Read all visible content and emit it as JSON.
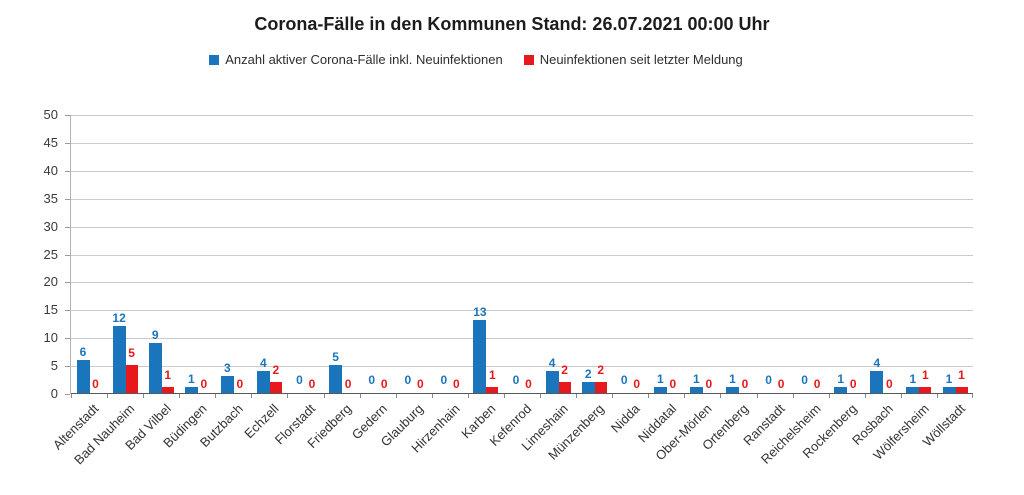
{
  "chart_data": {
    "type": "bar",
    "title": "Corona-Fälle in den Kommunen Stand: 26.07.2021 00:00 Uhr",
    "categories": [
      "Altenstadt",
      "Bad Nauheim",
      "Bad Vilbel",
      "Büdingen",
      "Butzbach",
      "Echzell",
      "Florstadt",
      "Friedberg",
      "Gedern",
      "Glauburg",
      "Hirzenhain",
      "Karben",
      "Kefenrod",
      "Limeshain",
      "Münzenberg",
      "Nidda",
      "Niddatal",
      "Ober-Mörlen",
      "Ortenberg",
      "Ranstadt",
      "Reichelsheim",
      "Rockenberg",
      "Rosbach",
      "Wölfersheim",
      "Wöllstadt"
    ],
    "series": [
      {
        "name": "Anzahl aktiver Corona-Fälle inkl. Neuinfektionen",
        "color": "#1b75bc",
        "values": [
          6,
          12,
          9,
          1,
          3,
          4,
          0,
          5,
          0,
          0,
          0,
          13,
          0,
          4,
          2,
          0,
          1,
          1,
          1,
          0,
          0,
          1,
          4,
          1,
          1
        ]
      },
      {
        "name": "Neuinfektionen seit letzter Meldung",
        "color": "#e8191c",
        "values": [
          0,
          5,
          1,
          0,
          0,
          2,
          0,
          0,
          0,
          0,
          0,
          1,
          0,
          2,
          2,
          0,
          0,
          0,
          0,
          0,
          0,
          0,
          0,
          1,
          1
        ]
      }
    ],
    "ylim": [
      0,
      50
    ],
    "ytick_step": 5,
    "grid": true,
    "legend_position": "top",
    "value_labels": true,
    "xlabel": "",
    "ylabel": ""
  },
  "colors": {
    "grid": "#cbcbcb",
    "x_axis_line": "#595959",
    "y_axis_line": "#b3b3b3",
    "tick": "#8a8a8a",
    "axis_text": "#333333",
    "title_text": "#1c1c1c"
  }
}
